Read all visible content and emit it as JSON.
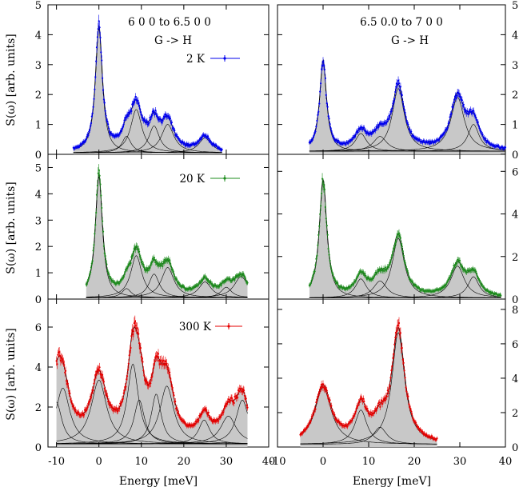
{
  "chart_data": {
    "type": "line",
    "title": "",
    "xlabel": "Energy [meV]",
    "ylabel": "S(ω) [arb. units]",
    "x_ticks": [
      -10,
      0,
      10,
      20,
      30,
      40
    ],
    "left_xlim": [
      -12,
      40
    ],
    "right_xlim": [
      -10,
      40
    ],
    "panels": [
      {
        "id": "left-2K",
        "column": "left",
        "row": 0,
        "ylim": [
          0,
          5
        ],
        "yticks": [
          0,
          1,
          2,
          3,
          4,
          5
        ],
        "ytick_side": "left",
        "label_line1": "6 0 0 to 6.5 0 0",
        "label_line2": "G -> H",
        "temperature_label": "2 K",
        "color": "#0000ee",
        "x_range": [
          -6,
          29
        ],
        "background": 0.05,
        "peaks": [
          {
            "center": 0.0,
            "height": 4.15,
            "width": 1.0
          },
          {
            "center": 6.5,
            "height": 0.55,
            "width": 1.3
          },
          {
            "center": 8.8,
            "height": 1.45,
            "width": 1.6
          },
          {
            "center": 13.0,
            "height": 0.9,
            "width": 1.5
          },
          {
            "center": 16.2,
            "height": 0.95,
            "width": 1.8
          },
          {
            "center": 25.0,
            "height": 0.5,
            "width": 1.8
          }
        ]
      },
      {
        "id": "left-20K",
        "column": "left",
        "row": 1,
        "ylim": [
          0,
          5.5
        ],
        "yticks": [
          0,
          1,
          2,
          3,
          4,
          5
        ],
        "ytick_side": "left",
        "temperature_label": "20 K",
        "color": "#1e8c1e",
        "x_range": [
          -3,
          35
        ],
        "background": 0.05,
        "peaks": [
          {
            "center": 0.0,
            "height": 4.6,
            "width": 1.0
          },
          {
            "center": 6.5,
            "height": 0.35,
            "width": 1.3
          },
          {
            "center": 8.8,
            "height": 1.6,
            "width": 1.6
          },
          {
            "center": 13.0,
            "height": 0.9,
            "width": 1.5
          },
          {
            "center": 16.2,
            "height": 1.15,
            "width": 1.8
          },
          {
            "center": 25.0,
            "height": 0.6,
            "width": 1.8
          },
          {
            "center": 30.0,
            "height": 0.4,
            "width": 1.5
          },
          {
            "center": 33.5,
            "height": 0.8,
            "width": 2.0
          }
        ]
      },
      {
        "id": "left-300K",
        "column": "left",
        "row": 2,
        "ylim": [
          0,
          7.4
        ],
        "yticks": [
          0,
          2,
          4,
          6
        ],
        "ytick_side": "left",
        "temperature_label": "300 K",
        "color": "#e60000",
        "x_range": [
          -10,
          35
        ],
        "background": 0.15,
        "peaks": [
          {
            "center": -10.0,
            "height": 2.1,
            "width": 1.5
          },
          {
            "center": -8.5,
            "height": 2.8,
            "width": 2.0
          },
          {
            "center": 0.0,
            "height": 3.2,
            "width": 2.2
          },
          {
            "center": 8.0,
            "height": 4.0,
            "width": 1.6
          },
          {
            "center": 9.5,
            "height": 2.2,
            "width": 1.5
          },
          {
            "center": 13.5,
            "height": 2.5,
            "width": 1.4
          },
          {
            "center": 16.0,
            "height": 2.9,
            "width": 2.0
          },
          {
            "center": 24.8,
            "height": 1.2,
            "width": 1.6
          },
          {
            "center": 30.5,
            "height": 1.4,
            "width": 2.2
          },
          {
            "center": 33.8,
            "height": 2.2,
            "width": 1.8
          }
        ]
      },
      {
        "id": "right-2K",
        "column": "right",
        "row": 0,
        "ylim": [
          0,
          5
        ],
        "yticks": [
          0,
          1,
          2,
          3,
          4,
          5
        ],
        "ytick_side": "right",
        "label_line1": "6.5 0.0 to 7 0 0",
        "label_line2": "G -> H",
        "color": "#0000ee",
        "x_range": [
          -3,
          40
        ],
        "background": 0.1,
        "peaks": [
          {
            "center": 0.0,
            "height": 3.0,
            "width": 0.9
          },
          {
            "center": 8.3,
            "height": 0.6,
            "width": 1.5
          },
          {
            "center": 12.5,
            "height": 0.5,
            "width": 1.8
          },
          {
            "center": 16.5,
            "height": 2.1,
            "width": 1.6
          },
          {
            "center": 29.5,
            "height": 1.8,
            "width": 1.8
          },
          {
            "center": 33.0,
            "height": 0.9,
            "width": 1.5
          }
        ]
      },
      {
        "id": "right-20K",
        "column": "right",
        "row": 1,
        "ylim": [
          0,
          6.8
        ],
        "yticks": [
          0,
          2,
          4,
          6
        ],
        "ytick_side": "right",
        "color": "#1e8c1e",
        "x_range": [
          -3,
          39
        ],
        "background": 0.05,
        "peaks": [
          {
            "center": 0.0,
            "height": 5.5,
            "width": 1.0
          },
          {
            "center": 8.3,
            "height": 0.9,
            "width": 1.5
          },
          {
            "center": 12.5,
            "height": 0.8,
            "width": 1.8
          },
          {
            "center": 16.5,
            "height": 2.8,
            "width": 1.6
          },
          {
            "center": 29.5,
            "height": 1.5,
            "width": 1.8
          },
          {
            "center": 33.0,
            "height": 1.0,
            "width": 1.5
          }
        ]
      },
      {
        "id": "right-300K",
        "column": "right",
        "row": 2,
        "ylim": [
          0,
          8.6
        ],
        "yticks": [
          0,
          2,
          4,
          6,
          8
        ],
        "ytick_side": "right",
        "color": "#e60000",
        "x_range": [
          -5,
          25
        ],
        "background": 0.15,
        "peaks": [
          {
            "center": 0.0,
            "height": 3.3,
            "width": 2.2
          },
          {
            "center": 8.3,
            "height": 2.0,
            "width": 1.6
          },
          {
            "center": 12.5,
            "height": 1.0,
            "width": 1.8
          },
          {
            "center": 16.5,
            "height": 6.5,
            "width": 1.7
          }
        ]
      }
    ]
  }
}
